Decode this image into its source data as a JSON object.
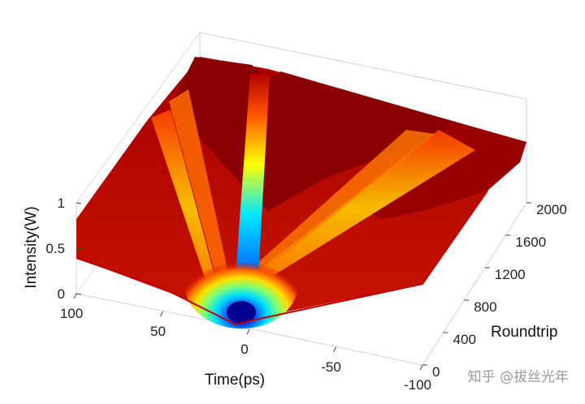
{
  "chart_data": {
    "type": "surface",
    "xlabel": "Time(ps)",
    "ylabel": "Roundtrip",
    "zlabel": "Intensity(W)",
    "x_ticks": [
      "100",
      "50",
      "0",
      "-50",
      "-100"
    ],
    "y_ticks": [
      "0",
      "400",
      "800",
      "1200",
      "1600",
      "2000"
    ],
    "z_ticks": [
      "0",
      "0.5",
      "1"
    ],
    "xlim": [
      -100,
      100
    ],
    "ylim": [
      0,
      2000
    ],
    "zlim": [
      0,
      1
    ],
    "colormap": "jet",
    "grid": true,
    "background_level": 0.85,
    "peak_level": 1.0,
    "min_level": 0.0,
    "dip_time": 0,
    "ridges": [
      {
        "name": "center",
        "x_start": 0,
        "x_end": -8,
        "level": 1.0
      },
      {
        "name": "left-outer",
        "x_start": 0,
        "x_end": 72,
        "level": 1.0
      },
      {
        "name": "right-outer",
        "x_start": 0,
        "x_end": -78,
        "level": 1.0
      }
    ]
  },
  "watermark": "知乎 @拔丝光年",
  "colors": {
    "low": "#00008f",
    "mid": "#00ffff",
    "high": "#ffff00",
    "top": "#800000"
  }
}
